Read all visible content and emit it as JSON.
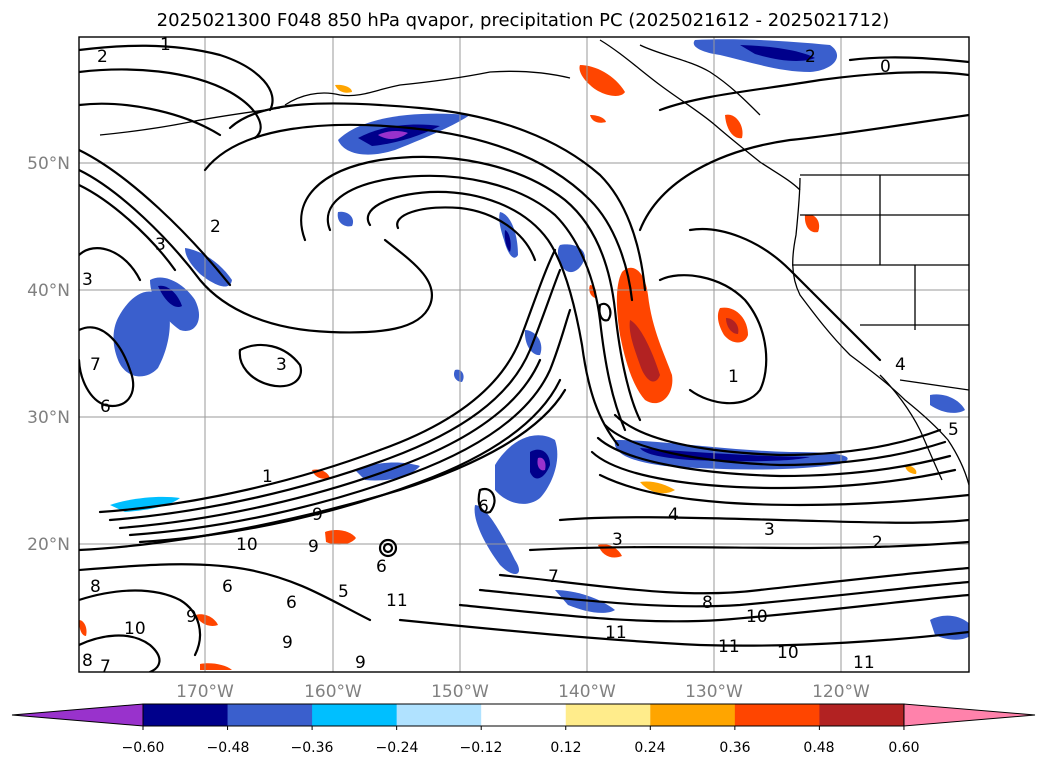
{
  "title": "2025021300 F048 850 hPa qvapor, precipitation PC (2025021612 - 2025021712)",
  "lat_labels": [
    {
      "label": "50°N",
      "lat": 50
    },
    {
      "label": "40°N",
      "lat": 40
    },
    {
      "label": "30°N",
      "lat": 30
    },
    {
      "label": "20°N",
      "lat": 20
    }
  ],
  "lon_labels": [
    {
      "label": "170°W",
      "lon": -170
    },
    {
      "label": "160°W",
      "lon": -160
    },
    {
      "label": "150°W",
      "lon": -150
    },
    {
      "label": "140°W",
      "lon": -140
    },
    {
      "label": "130°W",
      "lon": -130
    },
    {
      "label": "120°W",
      "lon": -120
    }
  ],
  "colorbar": {
    "ticks": [
      "−0.60",
      "−0.48",
      "−0.36",
      "−0.24",
      "−0.12",
      "0.12",
      "0.24",
      "0.36",
      "0.48",
      "0.60"
    ],
    "colors": [
      "#9932cc",
      "#00008b",
      "#3a5fcd",
      "#00bfff",
      "#b0e2ff",
      "#ffffff",
      "#ffec8b",
      "#ffa500",
      "#ff4500",
      "#b22222",
      "#ff82ab"
    ]
  },
  "contour_labels": [
    "1",
    "2",
    "0",
    "2",
    "3",
    "2",
    "3",
    "7",
    "6",
    "3",
    "1",
    "1",
    "4",
    "3",
    "2",
    "10",
    "9",
    "8",
    "6",
    "5",
    "9",
    "10",
    "11",
    "8",
    "10",
    "11",
    "11",
    "10",
    "11",
    "6",
    "9",
    "3",
    "7",
    "4",
    "6",
    "5",
    "9",
    "6",
    "9",
    "8",
    "7"
  ]
}
